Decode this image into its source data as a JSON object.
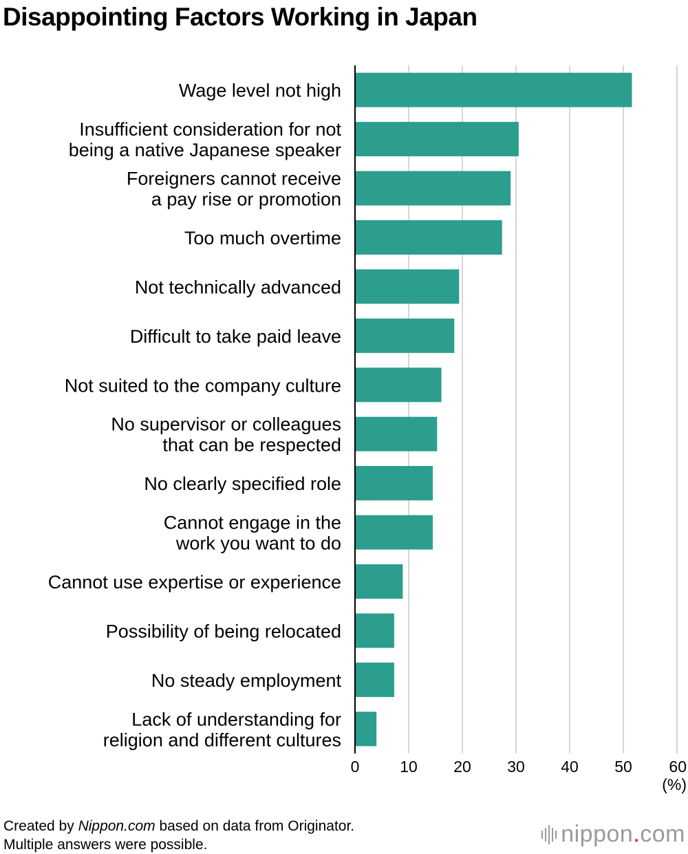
{
  "chart_data": {
    "type": "bar",
    "orientation": "horizontal",
    "title": "Disappointing Factors Working in Japan",
    "categories": [
      [
        "Wage level not high"
      ],
      [
        "Insufficient consideration for not",
        "being a native Japanese speaker"
      ],
      [
        "Foreigners cannot receive",
        "a pay rise or promotion"
      ],
      [
        "Too much overtime"
      ],
      [
        "Not technically advanced"
      ],
      [
        "Difficult to take paid leave"
      ],
      [
        "Not suited to the company culture"
      ],
      [
        "No supervisor or colleagues",
        "that can be respected"
      ],
      [
        "No clearly specified role"
      ],
      [
        "Cannot engage in the",
        "work you want to do"
      ],
      [
        "Cannot use expertise or experience"
      ],
      [
        "Possibility of being relocated"
      ],
      [
        "No steady employment"
      ],
      [
        "Lack of understanding for",
        "religion and different cultures"
      ]
    ],
    "values": [
      51.6,
      30.5,
      29.0,
      27.4,
      19.4,
      18.5,
      16.1,
      15.3,
      14.5,
      14.5,
      8.9,
      7.3,
      7.3,
      4.0
    ],
    "xlim": [
      0,
      60
    ],
    "xticks": [
      0,
      10,
      20,
      30,
      40,
      50,
      60
    ],
    "xunit": "(%)",
    "grid": true,
    "bar_color": "#2b9e8e"
  },
  "footer": {
    "prefix": "Created by ",
    "source_name": "Nippon.com",
    "suffix": " based on data from Originator.",
    "note": "Multiple answers were possible."
  },
  "brand": {
    "name": "nippon",
    "dot": ".",
    "tld": "com"
  }
}
